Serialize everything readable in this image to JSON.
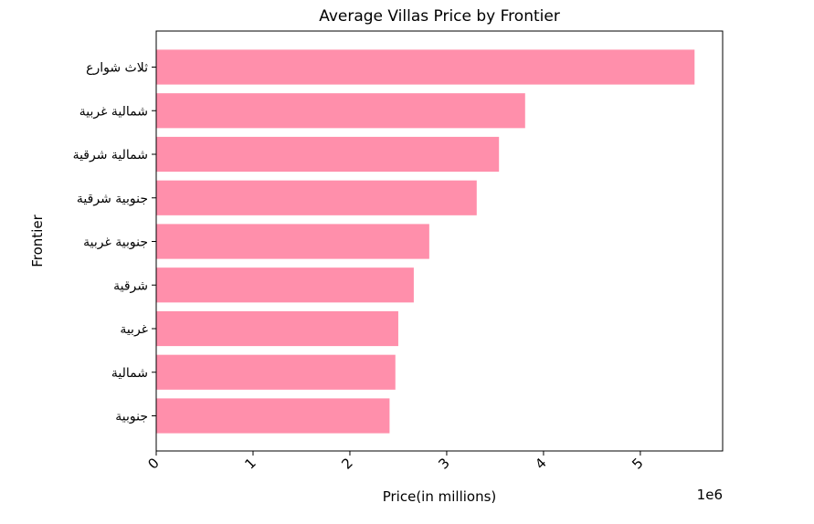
{
  "chart_data": {
    "type": "bar",
    "orientation": "horizontal",
    "title": "Average Villas Price by Frontier",
    "xlabel": "Price(in millions)",
    "ylabel": "Frontier",
    "offset_label": "1e6",
    "categories": [
      "ثلاث شوارع",
      "شمالية غربية",
      "شمالية شرقية",
      "جنوبية شرقية",
      "جنوبية غربية",
      "شرقية",
      "غربية",
      "شمالية",
      "جنوبية"
    ],
    "values": [
      5560000,
      3810000,
      3540000,
      3310000,
      2820000,
      2660000,
      2500000,
      2470000,
      2410000
    ],
    "xlim": [
      0,
      5850000
    ],
    "xticks": [
      0,
      1000000,
      2000000,
      3000000,
      4000000,
      5000000
    ],
    "xtick_labels": [
      "0",
      "1",
      "2",
      "3",
      "4",
      "5"
    ],
    "bar_color": "#ff8fab",
    "grid": false,
    "legend": "none"
  }
}
